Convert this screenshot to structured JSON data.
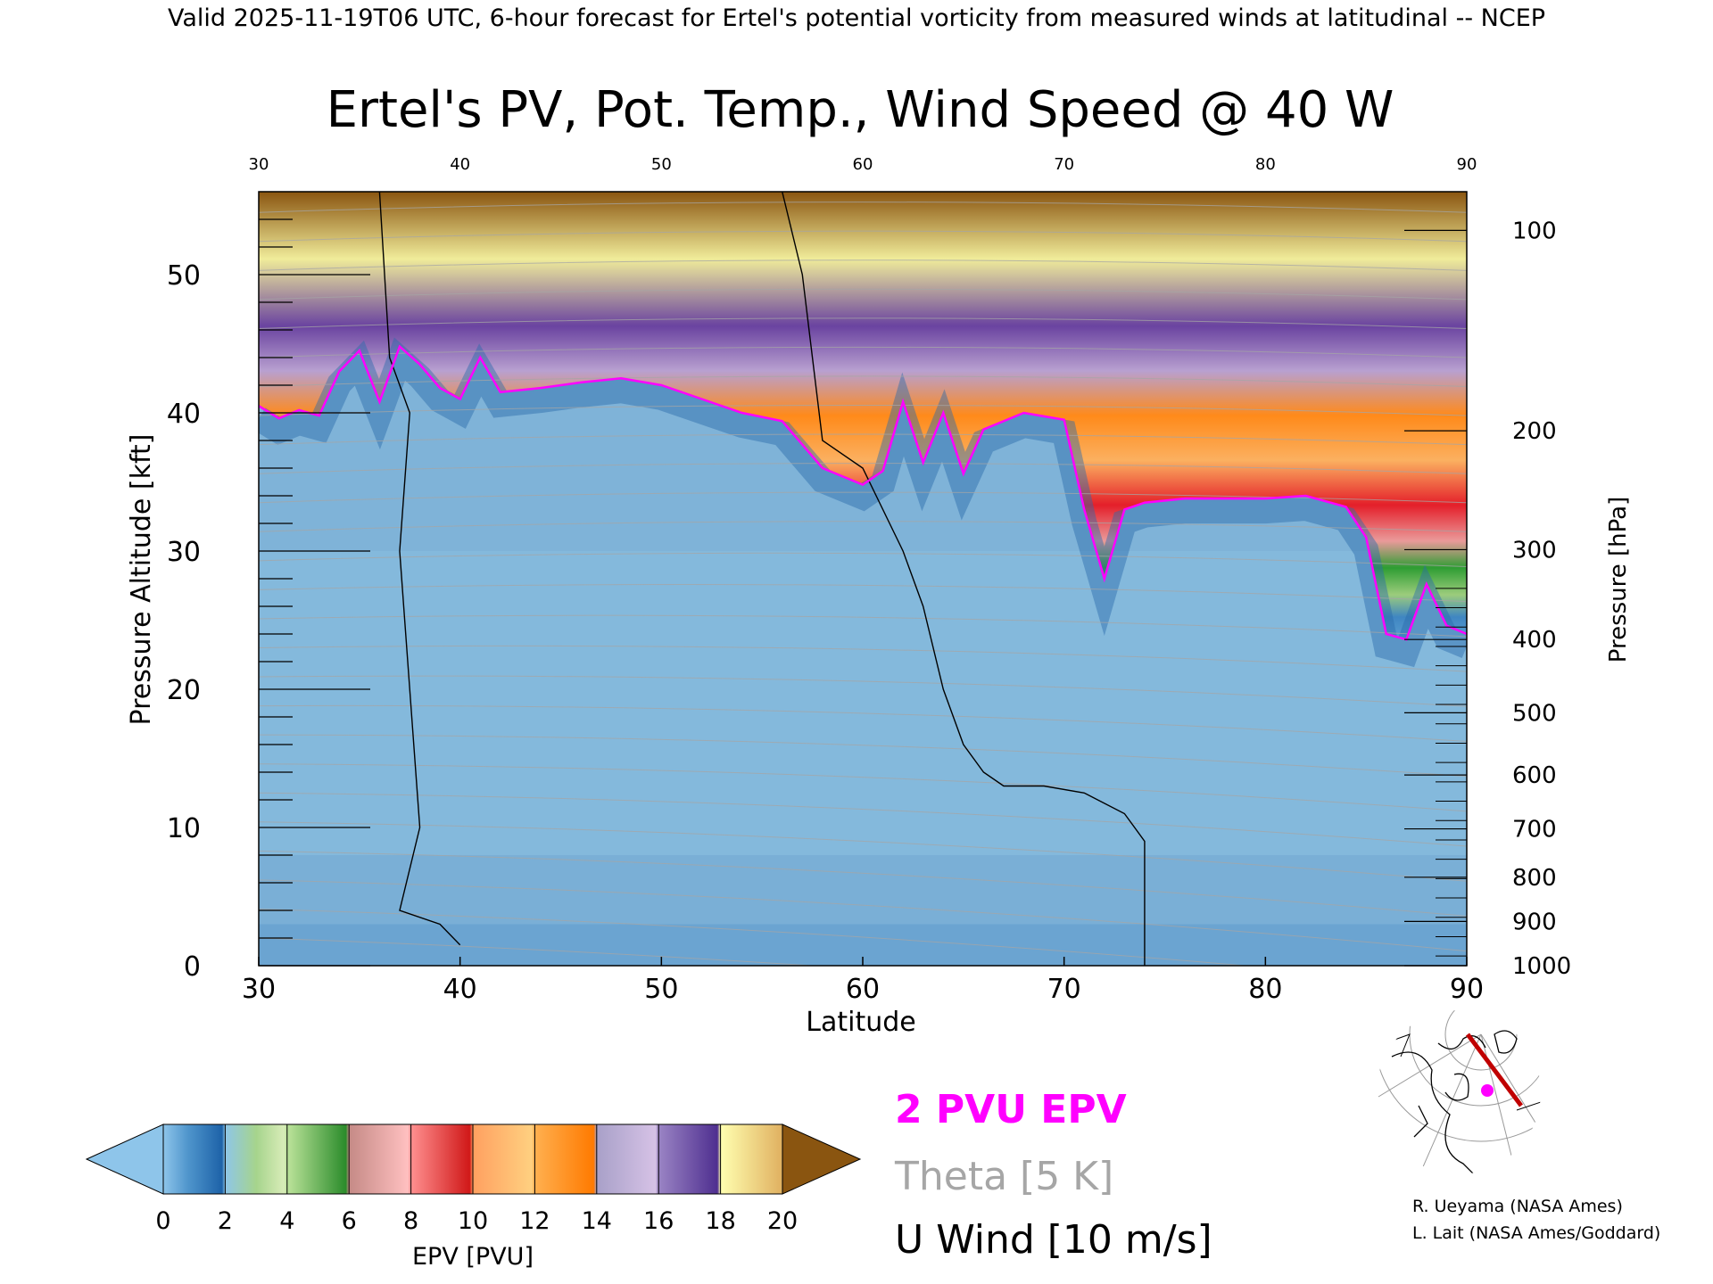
{
  "header": {
    "valid_line": "Valid 2025-11-19T06 UTC, 6-hour forecast for Ertel's potential vorticity from measured winds at latitudinal -- NCEP",
    "title": "Ertel's PV, Pot. Temp., Wind Speed @ 40 W"
  },
  "chart_data": {
    "type": "heatmap",
    "title": "Ertel's PV, Pot. Temp., Wind Speed @ 40 W",
    "xlabel": "Latitude",
    "ylabel": "Pressure Altitude [kft]",
    "y2label": "Pressure [hPa]",
    "xlim": [
      30,
      90
    ],
    "ylim": [
      0,
      56
    ],
    "x_ticks": [
      "30",
      "40",
      "50",
      "60",
      "70",
      "80",
      "90"
    ],
    "y_ticks": [
      "0",
      "10",
      "20",
      "30",
      "40",
      "50"
    ],
    "pressure_ticks": [
      {
        "label": "1000",
        "kft": 0
      },
      {
        "label": "900",
        "kft": 3.2
      },
      {
        "label": "800",
        "kft": 6.4
      },
      {
        "label": "700",
        "kft": 9.9
      },
      {
        "label": "600",
        "kft": 13.8
      },
      {
        "label": "500",
        "kft": 18.3
      },
      {
        "label": "400",
        "kft": 23.6
      },
      {
        "label": "300",
        "kft": 30.1
      },
      {
        "label": "200",
        "kft": 38.7
      },
      {
        "label": "100",
        "kft": 53.2
      }
    ],
    "colorbar": {
      "label": "EPV [PVU]",
      "ticks": [
        "0",
        "2",
        "4",
        "6",
        "8",
        "10",
        "12",
        "14",
        "16",
        "18",
        "20"
      ],
      "range": [
        0,
        20
      ]
    },
    "epv_2pvu_tropopause_kft": [
      [
        30,
        40.5
      ],
      [
        31,
        39.6
      ],
      [
        32,
        40.2
      ],
      [
        33,
        39.8
      ],
      [
        34,
        43
      ],
      [
        35,
        44.5
      ],
      [
        36,
        40.8
      ],
      [
        37,
        44.8
      ],
      [
        38,
        43.5
      ],
      [
        39,
        41.8
      ],
      [
        40,
        41
      ],
      [
        41,
        44
      ],
      [
        42,
        41.5
      ],
      [
        44,
        41.8
      ],
      [
        46,
        42.2
      ],
      [
        48,
        42.5
      ],
      [
        50,
        42
      ],
      [
        52,
        41
      ],
      [
        54,
        40
      ],
      [
        56,
        39.4
      ],
      [
        58,
        36
      ],
      [
        60,
        34.8
      ],
      [
        61,
        35.8
      ],
      [
        62,
        40.8
      ],
      [
        63,
        36.4
      ],
      [
        64,
        40
      ],
      [
        65,
        35.6
      ],
      [
        66,
        38.8
      ],
      [
        68,
        40
      ],
      [
        70,
        39.5
      ],
      [
        71,
        33
      ],
      [
        72,
        28
      ],
      [
        73,
        33
      ],
      [
        74,
        33.5
      ],
      [
        76,
        33.8
      ],
      [
        78,
        33.8
      ],
      [
        80,
        33.8
      ],
      [
        82,
        34
      ],
      [
        84,
        33.2
      ],
      [
        85,
        31
      ],
      [
        86,
        24
      ],
      [
        87,
        23.6
      ],
      [
        88,
        27.6
      ],
      [
        89,
        24.6
      ],
      [
        90,
        24
      ]
    ],
    "wind_10ms_contours": [
      [
        [
          36,
          56
        ],
        [
          36.5,
          44
        ],
        [
          37.5,
          40
        ],
        [
          37,
          30
        ],
        [
          37.5,
          20
        ],
        [
          38,
          10
        ],
        [
          37,
          4
        ],
        [
          39,
          3
        ],
        [
          40,
          1.5
        ]
      ],
      [
        [
          56,
          56
        ],
        [
          57,
          50
        ],
        [
          57.5,
          44
        ],
        [
          58,
          38
        ],
        [
          60,
          36
        ],
        [
          62,
          30
        ],
        [
          63,
          26
        ],
        [
          64,
          20
        ],
        [
          65,
          16
        ],
        [
          66,
          14
        ],
        [
          67,
          13
        ],
        [
          69,
          13
        ],
        [
          71,
          12.5
        ],
        [
          73,
          11
        ],
        [
          74,
          9
        ],
        [
          74,
          0
        ]
      ]
    ],
    "series": [
      {
        "name": "2 PVU EPV",
        "color": "#ff00ff"
      },
      {
        "name": "Theta [5 K]",
        "color": "#a6a6a6"
      },
      {
        "name": "U Wind [10 m/s]",
        "color": "#000000"
      }
    ]
  },
  "legend": {
    "epv": "2 PVU EPV",
    "theta": "Theta [5 K]",
    "uwind": "U Wind [10 m/s]"
  },
  "inset": {
    "label": "location map"
  },
  "credits": {
    "line1": "R. Ueyama (NASA Ames)",
    "line2": "L. Lait (NASA Ames/Goddard)"
  },
  "colors": {
    "pv_2": "#ff00ff",
    "theta": "#a6a6a6",
    "wind": "#000000",
    "track": "#c00000"
  }
}
